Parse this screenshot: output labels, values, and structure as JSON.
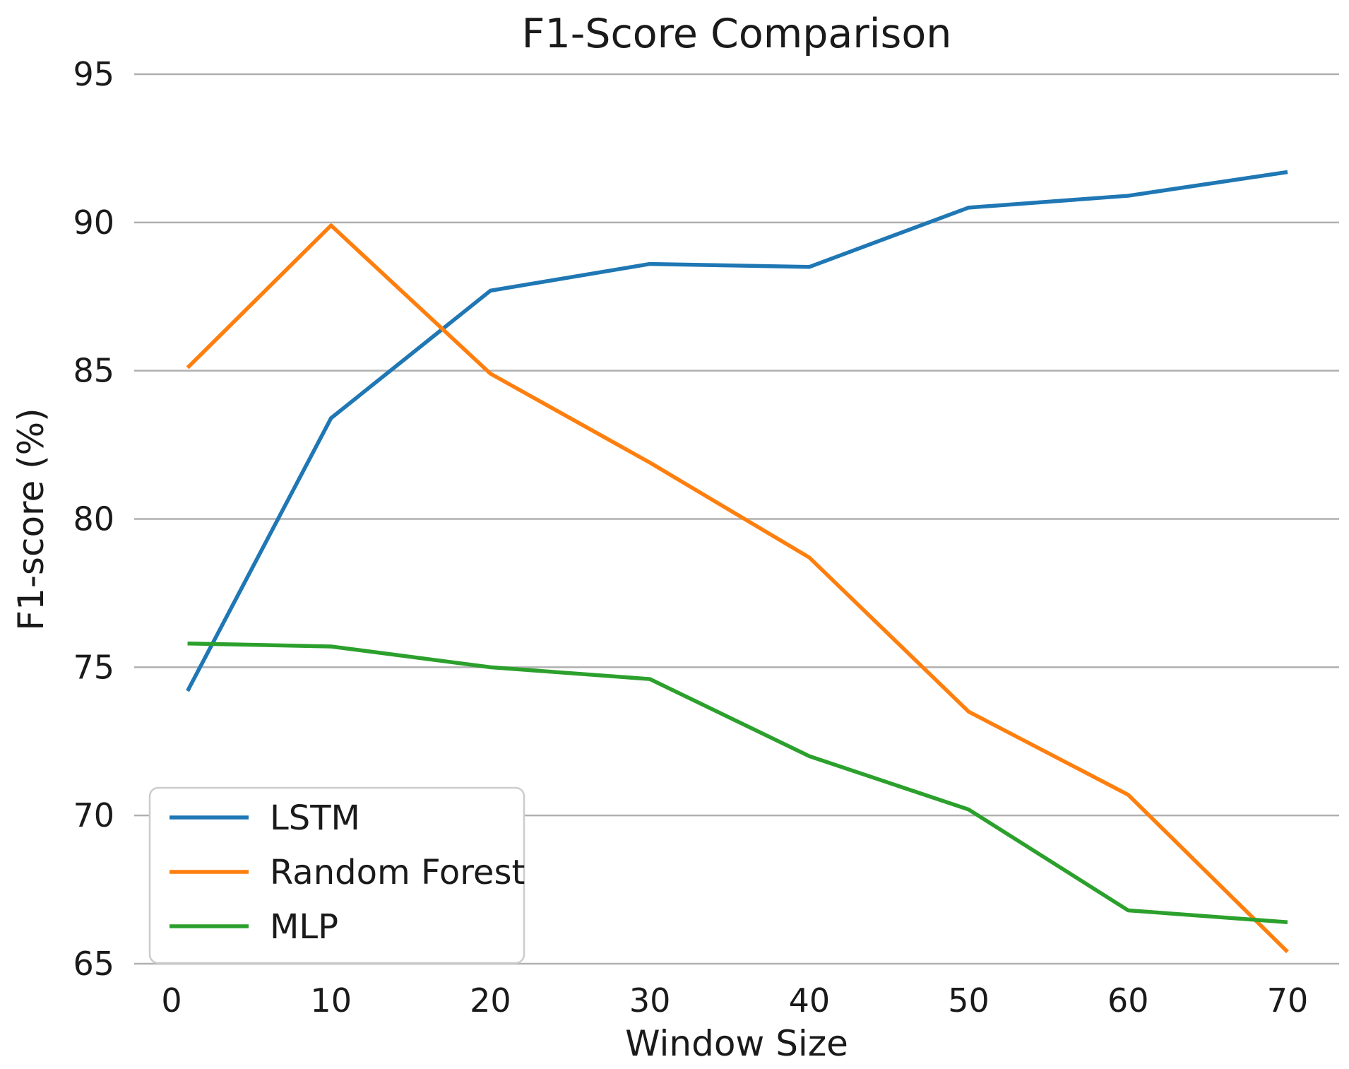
{
  "chart_data": {
    "type": "line",
    "title": "F1-Score Comparison",
    "xlabel": "Window Size",
    "ylabel": "F1-score (%)",
    "x": [
      1,
      10,
      20,
      30,
      40,
      50,
      60,
      70
    ],
    "xticks": [
      0,
      10,
      20,
      30,
      40,
      50,
      60,
      70
    ],
    "yticks": [
      65,
      70,
      75,
      80,
      85,
      90,
      95
    ],
    "xlim": [
      -2.3,
      73.2
    ],
    "ylim": [
      65,
      95
    ],
    "grid": "horizontal-only",
    "legend_position": "lower-left",
    "series": [
      {
        "name": "LSTM",
        "color": "#1f77b4",
        "values": [
          74.2,
          83.4,
          87.7,
          88.6,
          88.5,
          90.5,
          90.9,
          91.7
        ]
      },
      {
        "name": "Random Forest",
        "color": "#ff7f0e",
        "values": [
          85.1,
          89.9,
          84.9,
          81.9,
          78.7,
          73.5,
          70.7,
          65.4
        ]
      },
      {
        "name": "MLP",
        "color": "#2ca02c",
        "values": [
          75.8,
          75.7,
          75.0,
          74.6,
          72.0,
          70.2,
          66.8,
          66.4
        ]
      }
    ]
  },
  "colors": {
    "grid": "#b0b0b0",
    "text": "#1a1a1a",
    "legend_border": "#cccccc",
    "background": "#ffffff"
  }
}
